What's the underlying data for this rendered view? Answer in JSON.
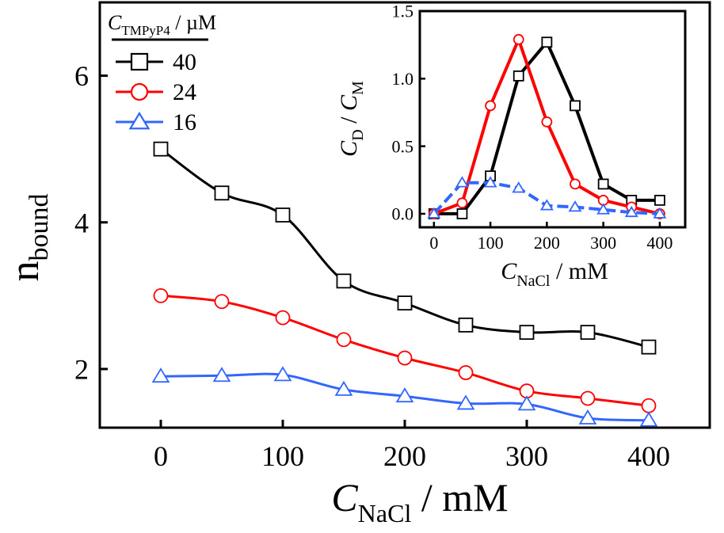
{
  "chart_data": [
    {
      "type": "line",
      "panel": "main",
      "xlabel": {
        "symbol": "C",
        "subscript": "NaCl",
        "unit": " / mM"
      },
      "ylabel": {
        "symbol": "n",
        "subscript": "bound"
      },
      "xlim": [
        -50,
        450
      ],
      "ylim": [
        1.2,
        7.0
      ],
      "xticks": [
        0,
        100,
        200,
        300,
        400
      ],
      "yticks": [
        2,
        4,
        6
      ],
      "legend": {
        "title": {
          "symbol": "C",
          "subscript": "TMPyP4",
          "unit": " / µM"
        },
        "placement": "top-left"
      },
      "series": [
        {
          "name": "40",
          "color": "#000000",
          "marker": "square",
          "x": [
            0,
            50,
            100,
            150,
            200,
            250,
            300,
            350,
            400
          ],
          "y": [
            5.0,
            4.4,
            4.1,
            3.2,
            2.9,
            2.6,
            2.5,
            2.5,
            2.3
          ]
        },
        {
          "name": "24",
          "color": "#ff0000",
          "marker": "circle",
          "x": [
            0,
            50,
            100,
            150,
            200,
            250,
            300,
            350,
            400
          ],
          "y": [
            3.0,
            2.92,
            2.7,
            2.4,
            2.15,
            1.95,
            1.7,
            1.6,
            1.5
          ]
        },
        {
          "name": "16",
          "color": "#3366ff",
          "marker": "triangle",
          "x": [
            0,
            50,
            100,
            150,
            200,
            250,
            300,
            350,
            400
          ],
          "y": [
            1.9,
            1.91,
            1.92,
            1.72,
            1.63,
            1.53,
            1.52,
            1.33,
            1.3
          ]
        }
      ]
    },
    {
      "type": "line",
      "panel": "inset",
      "xlabel": {
        "symbol": "C",
        "subscript": "NaCl",
        "unit": " / mM"
      },
      "ylabel": {
        "num": "C",
        "num_sub": "D",
        "den": "C",
        "den_sub": "M"
      },
      "xlim": [
        -25,
        445
      ],
      "ylim": [
        -0.1,
        1.5
      ],
      "xticks": [
        0,
        100,
        200,
        300,
        400
      ],
      "yticks": [
        0.0,
        0.5,
        1.0,
        1.5
      ],
      "series": [
        {
          "name": "40",
          "color": "#000000",
          "marker": "square",
          "dash": false,
          "x": [
            0,
            50,
            100,
            150,
            200,
            250,
            300,
            350,
            400
          ],
          "y": [
            0.0,
            0.0,
            0.28,
            1.02,
            1.27,
            0.8,
            0.22,
            0.1,
            0.1
          ]
        },
        {
          "name": "24",
          "color": "#ff0000",
          "marker": "circle",
          "dash": false,
          "x": [
            0,
            50,
            100,
            150,
            200,
            250,
            300,
            350,
            400
          ],
          "y": [
            0.0,
            0.08,
            0.8,
            1.29,
            0.68,
            0.22,
            0.1,
            0.05,
            0.0
          ]
        },
        {
          "name": "16",
          "color": "#3366ff",
          "marker": "triangle",
          "dash": true,
          "x": [
            0,
            50,
            100,
            150,
            200,
            250,
            300,
            350,
            400
          ],
          "y": [
            0.0,
            0.23,
            0.23,
            0.19,
            0.06,
            0.05,
            0.03,
            0.01,
            0.0
          ]
        }
      ]
    }
  ]
}
